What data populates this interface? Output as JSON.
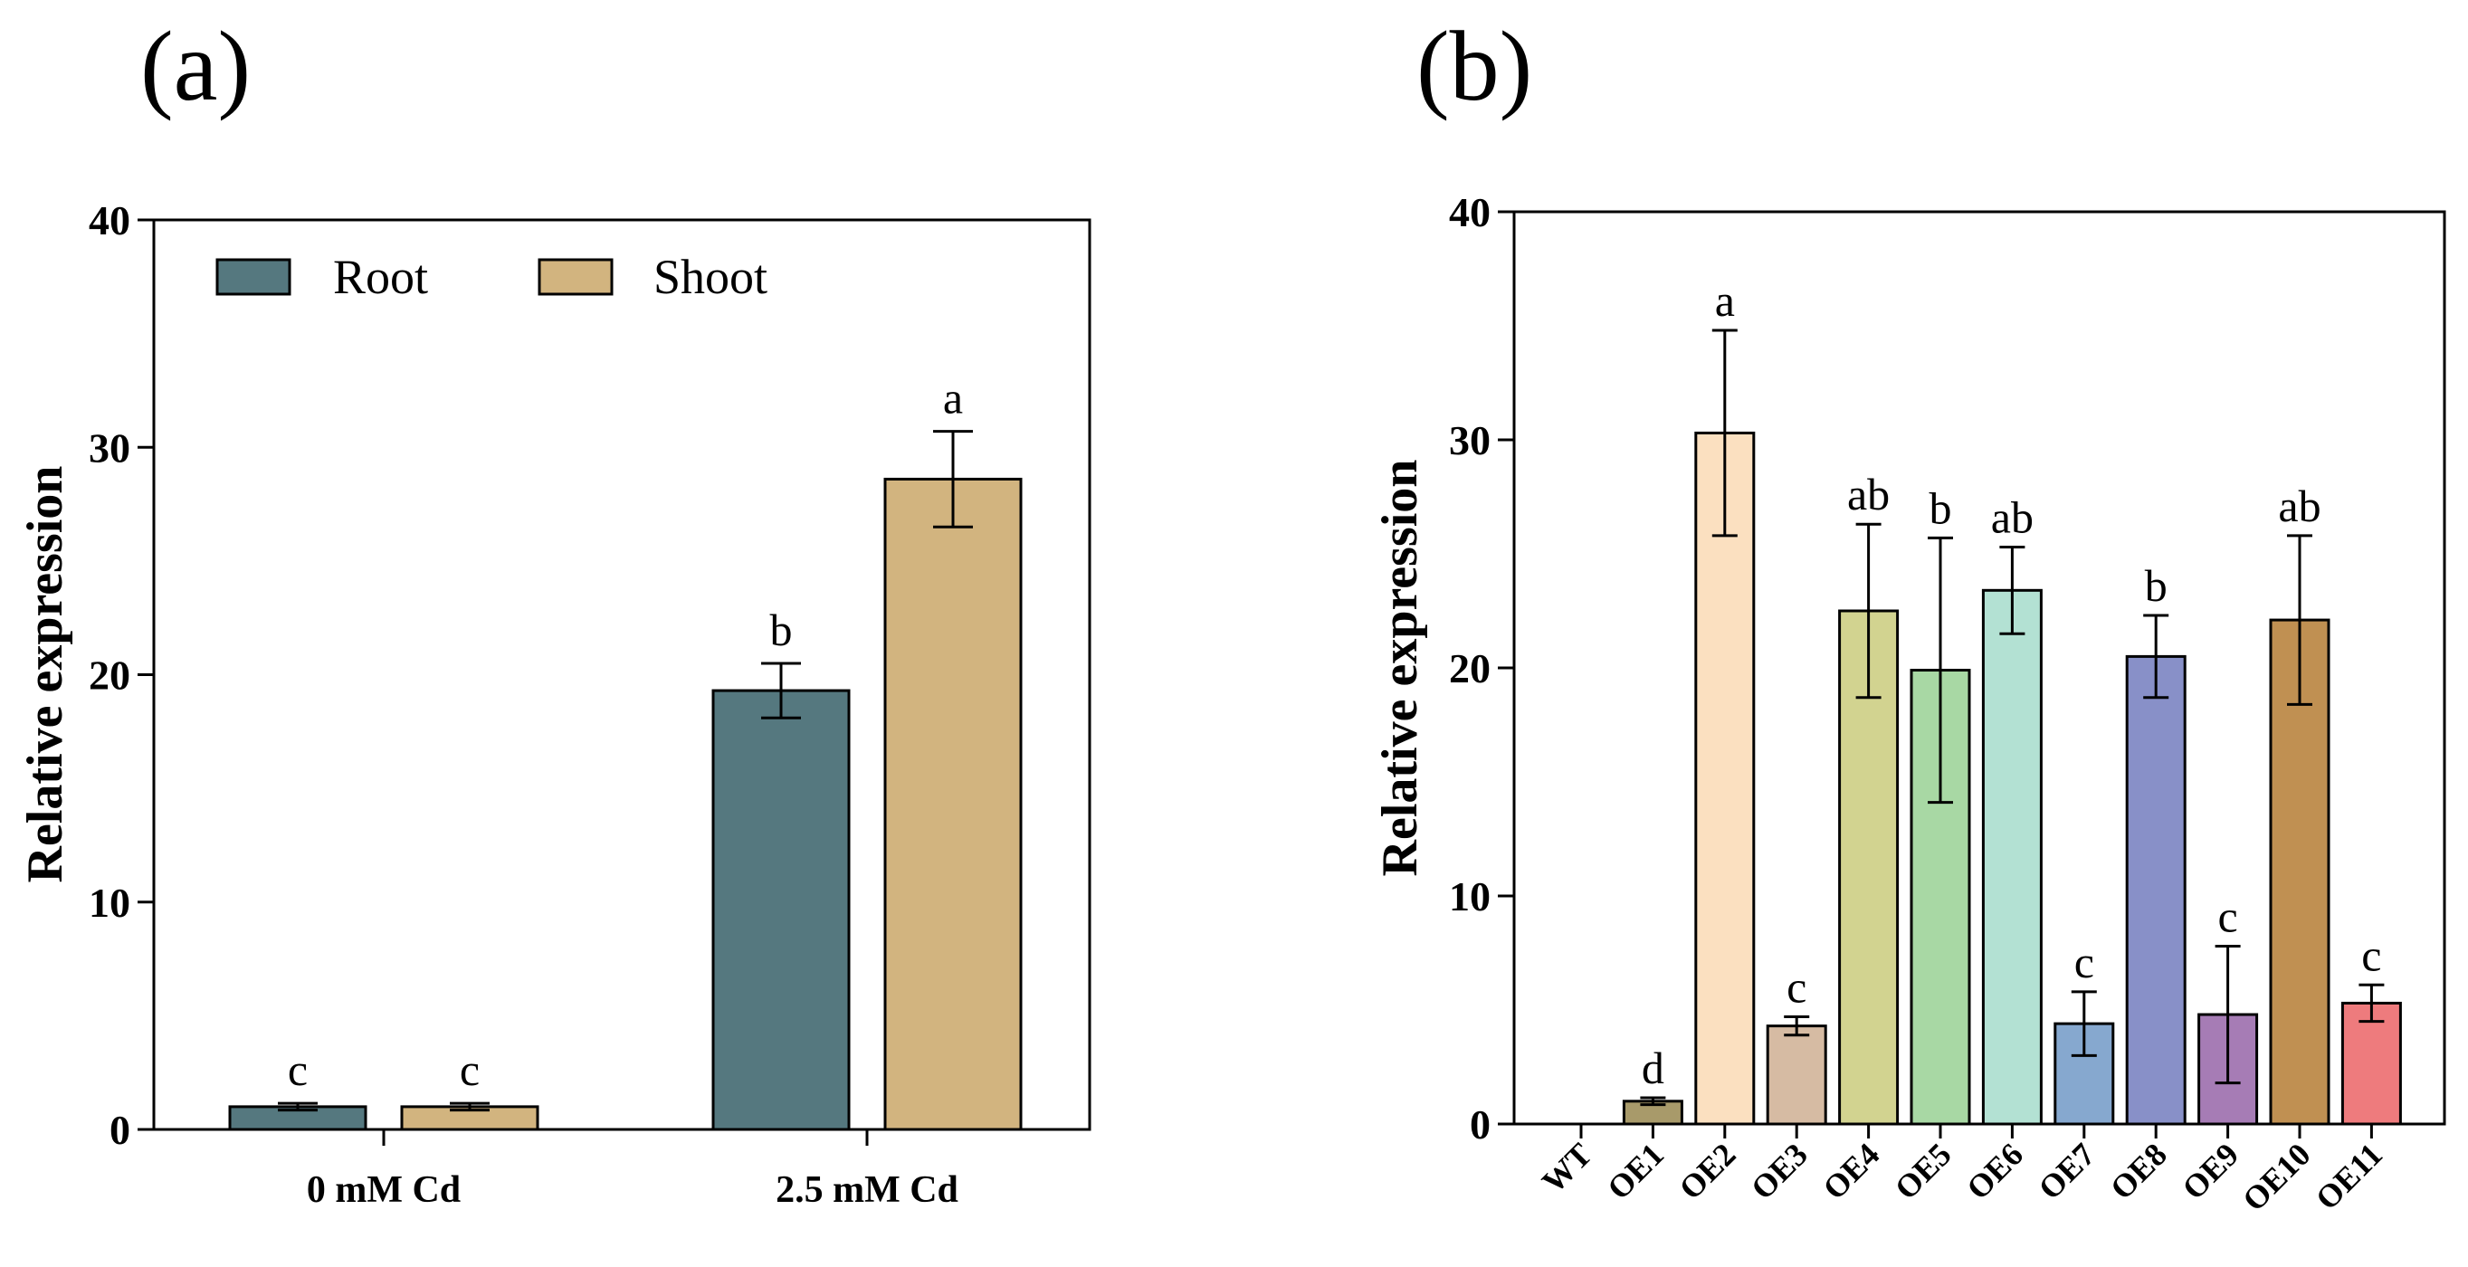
{
  "chart_data": [
    {
      "type": "bar",
      "panel_label": "(a)",
      "title": "",
      "xlabel": "",
      "ylabel": "Relative expression",
      "ylim": [
        0,
        40
      ],
      "yticks": [
        "0",
        "10",
        "20",
        "30",
        "40"
      ],
      "categories": [
        "0 mM Cd",
        "2.5 mM Cd"
      ],
      "legend": {
        "position": "top-left"
      },
      "series": [
        {
          "name": "Root",
          "color": "#55787f",
          "values": [
            1.0,
            19.3
          ],
          "errors": [
            0.15,
            1.2
          ],
          "sig": [
            "c",
            "b"
          ]
        },
        {
          "name": "Shoot",
          "color": "#d2b47f",
          "values": [
            1.0,
            28.6
          ],
          "errors": [
            0.15,
            2.1
          ],
          "sig": [
            "c",
            "a"
          ]
        }
      ]
    },
    {
      "type": "bar",
      "panel_label": "(b)",
      "title": "",
      "xlabel": "",
      "ylabel": "Relative expression",
      "ylim": [
        0,
        40
      ],
      "yticks": [
        "0",
        "10",
        "20",
        "30",
        "40"
      ],
      "categories": [
        "WT",
        "OE1",
        "OE2",
        "OE3",
        "OE4",
        "OE5",
        "OE6",
        "OE7",
        "OE8",
        "OE9",
        "OE10",
        "OE11"
      ],
      "values": [
        0,
        1.0,
        30.3,
        4.3,
        22.5,
        19.9,
        23.4,
        4.4,
        20.5,
        4.8,
        22.1,
        5.3
      ],
      "errors": [
        0,
        0.15,
        4.5,
        0.4,
        3.8,
        5.8,
        1.9,
        1.4,
        1.8,
        3.0,
        3.7,
        0.8
      ],
      "sig": [
        "",
        "d",
        "a",
        "c",
        "ab",
        "b",
        "ab",
        "c",
        "b",
        "c",
        "ab",
        "c"
      ],
      "colors": [
        "#ffffff",
        "#a89a6a",
        "#fbe0c0",
        "#d6bba3",
        "#d2d390",
        "#a8d8a4",
        "#b3e1d3",
        "#86a8cf",
        "#8890c8",
        "#a67cb5",
        "#c09052",
        "#ee7b7d"
      ]
    }
  ]
}
